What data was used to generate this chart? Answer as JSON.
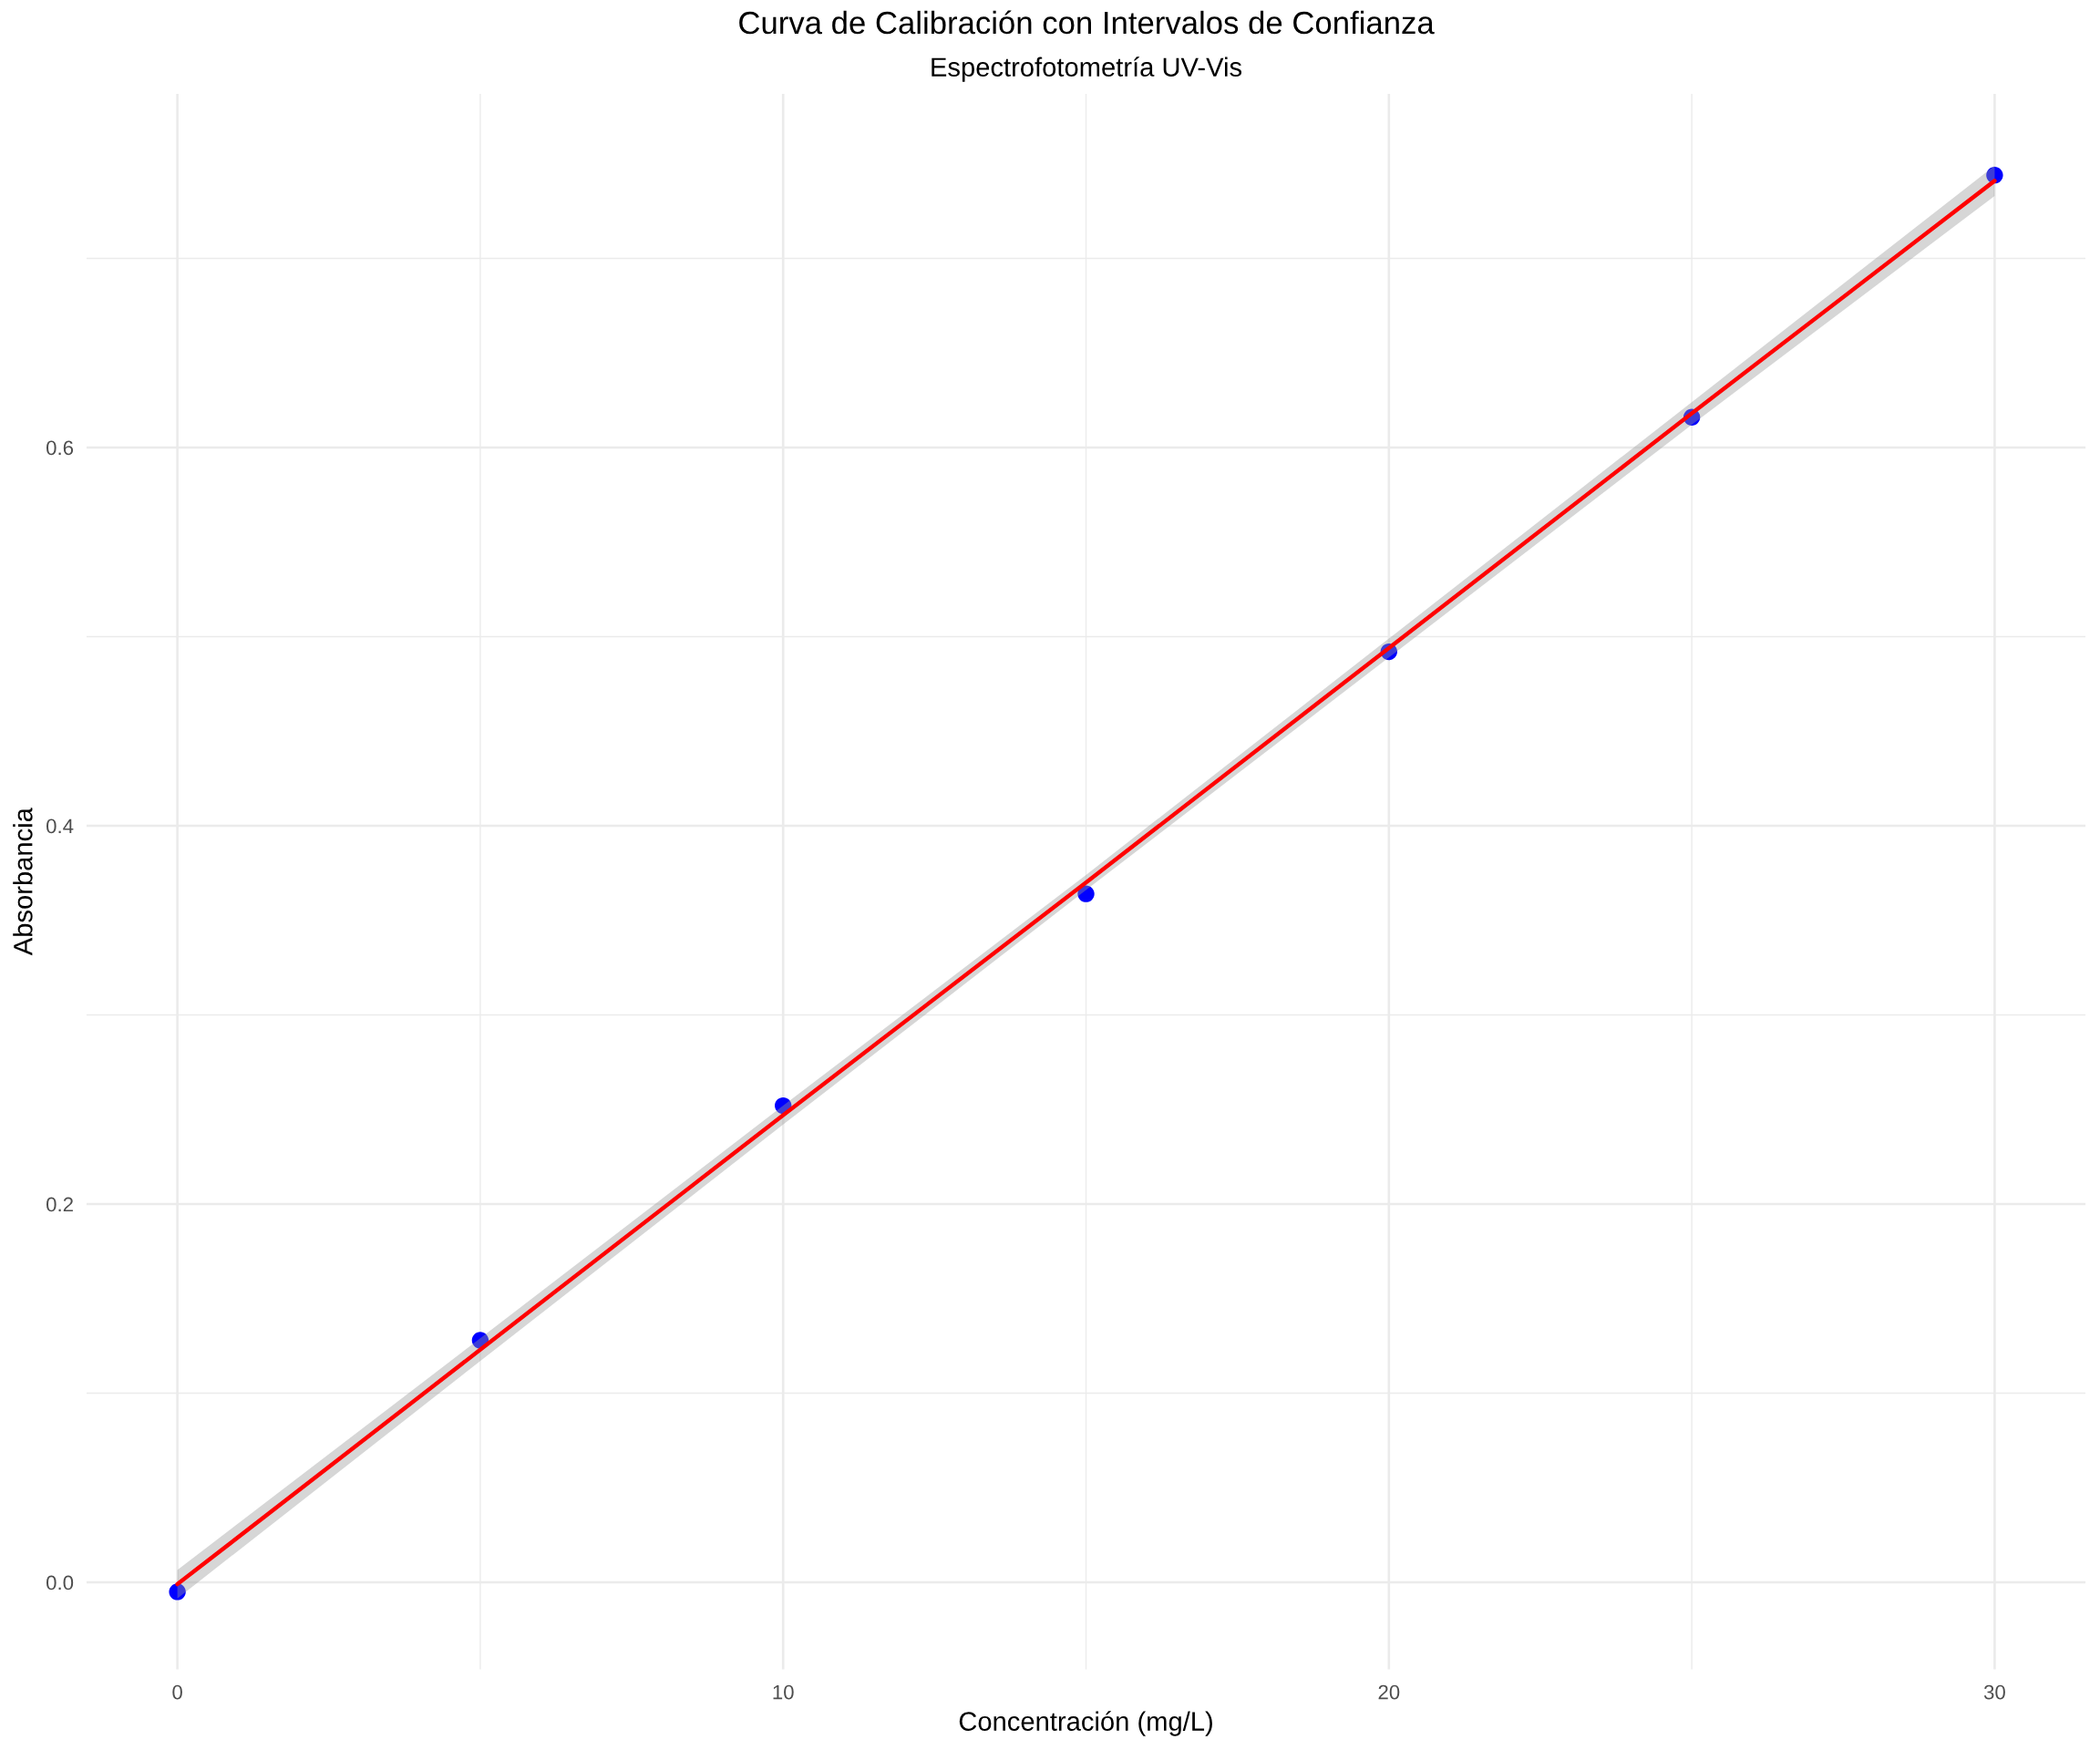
{
  "chart_data": {
    "type": "scatter",
    "title": "Curva de Calibración con Intervalos de Confianza",
    "subtitle": "Espectrofotometría UV-Vis",
    "xlabel": "Concentración (mg/L)",
    "ylabel": "Absorbancia",
    "series": [
      {
        "color": "#0000ff",
        "marker": "circle",
        "x": [
          0,
          5,
          10,
          15,
          20,
          25,
          30
        ],
        "values": [
          -0.005,
          0.128,
          0.252,
          0.364,
          0.492,
          0.616,
          0.744
        ]
      },
      {
        "type": "line",
        "color": "#ff0000",
        "x": [
          0,
          5,
          10,
          15,
          20,
          25,
          30
        ],
        "values": [
          -0.001,
          0.123,
          0.247,
          0.37,
          0.494,
          0.618,
          0.741
        ],
        "lower": [
          -0.0085,
          0.117,
          0.242,
          0.366,
          0.489,
          0.612,
          0.733
        ],
        "upper": [
          0.0065,
          0.129,
          0.252,
          0.374,
          0.499,
          0.624,
          0.749
        ]
      }
    ],
    "xlim": [
      -1.5,
      31.5
    ],
    "ylim": [
      -0.046,
      0.787
    ],
    "xticks": [
      0,
      {
        "value": 5,
        "label": null
      },
      10,
      {
        "value": 15,
        "label": null
      },
      20,
      {
        "value": 25,
        "label": null
      },
      30
    ],
    "yticks": [
      {
        "value": 0,
        "label": "0.0"
      },
      {
        "value": 0.1,
        "label": null
      },
      0.2,
      {
        "value": 0.3,
        "label": null
      },
      0.4,
      {
        "value": 0.5,
        "label": null
      },
      0.6,
      {
        "value": 0.7,
        "label": null
      }
    ],
    "grid": true
  }
}
